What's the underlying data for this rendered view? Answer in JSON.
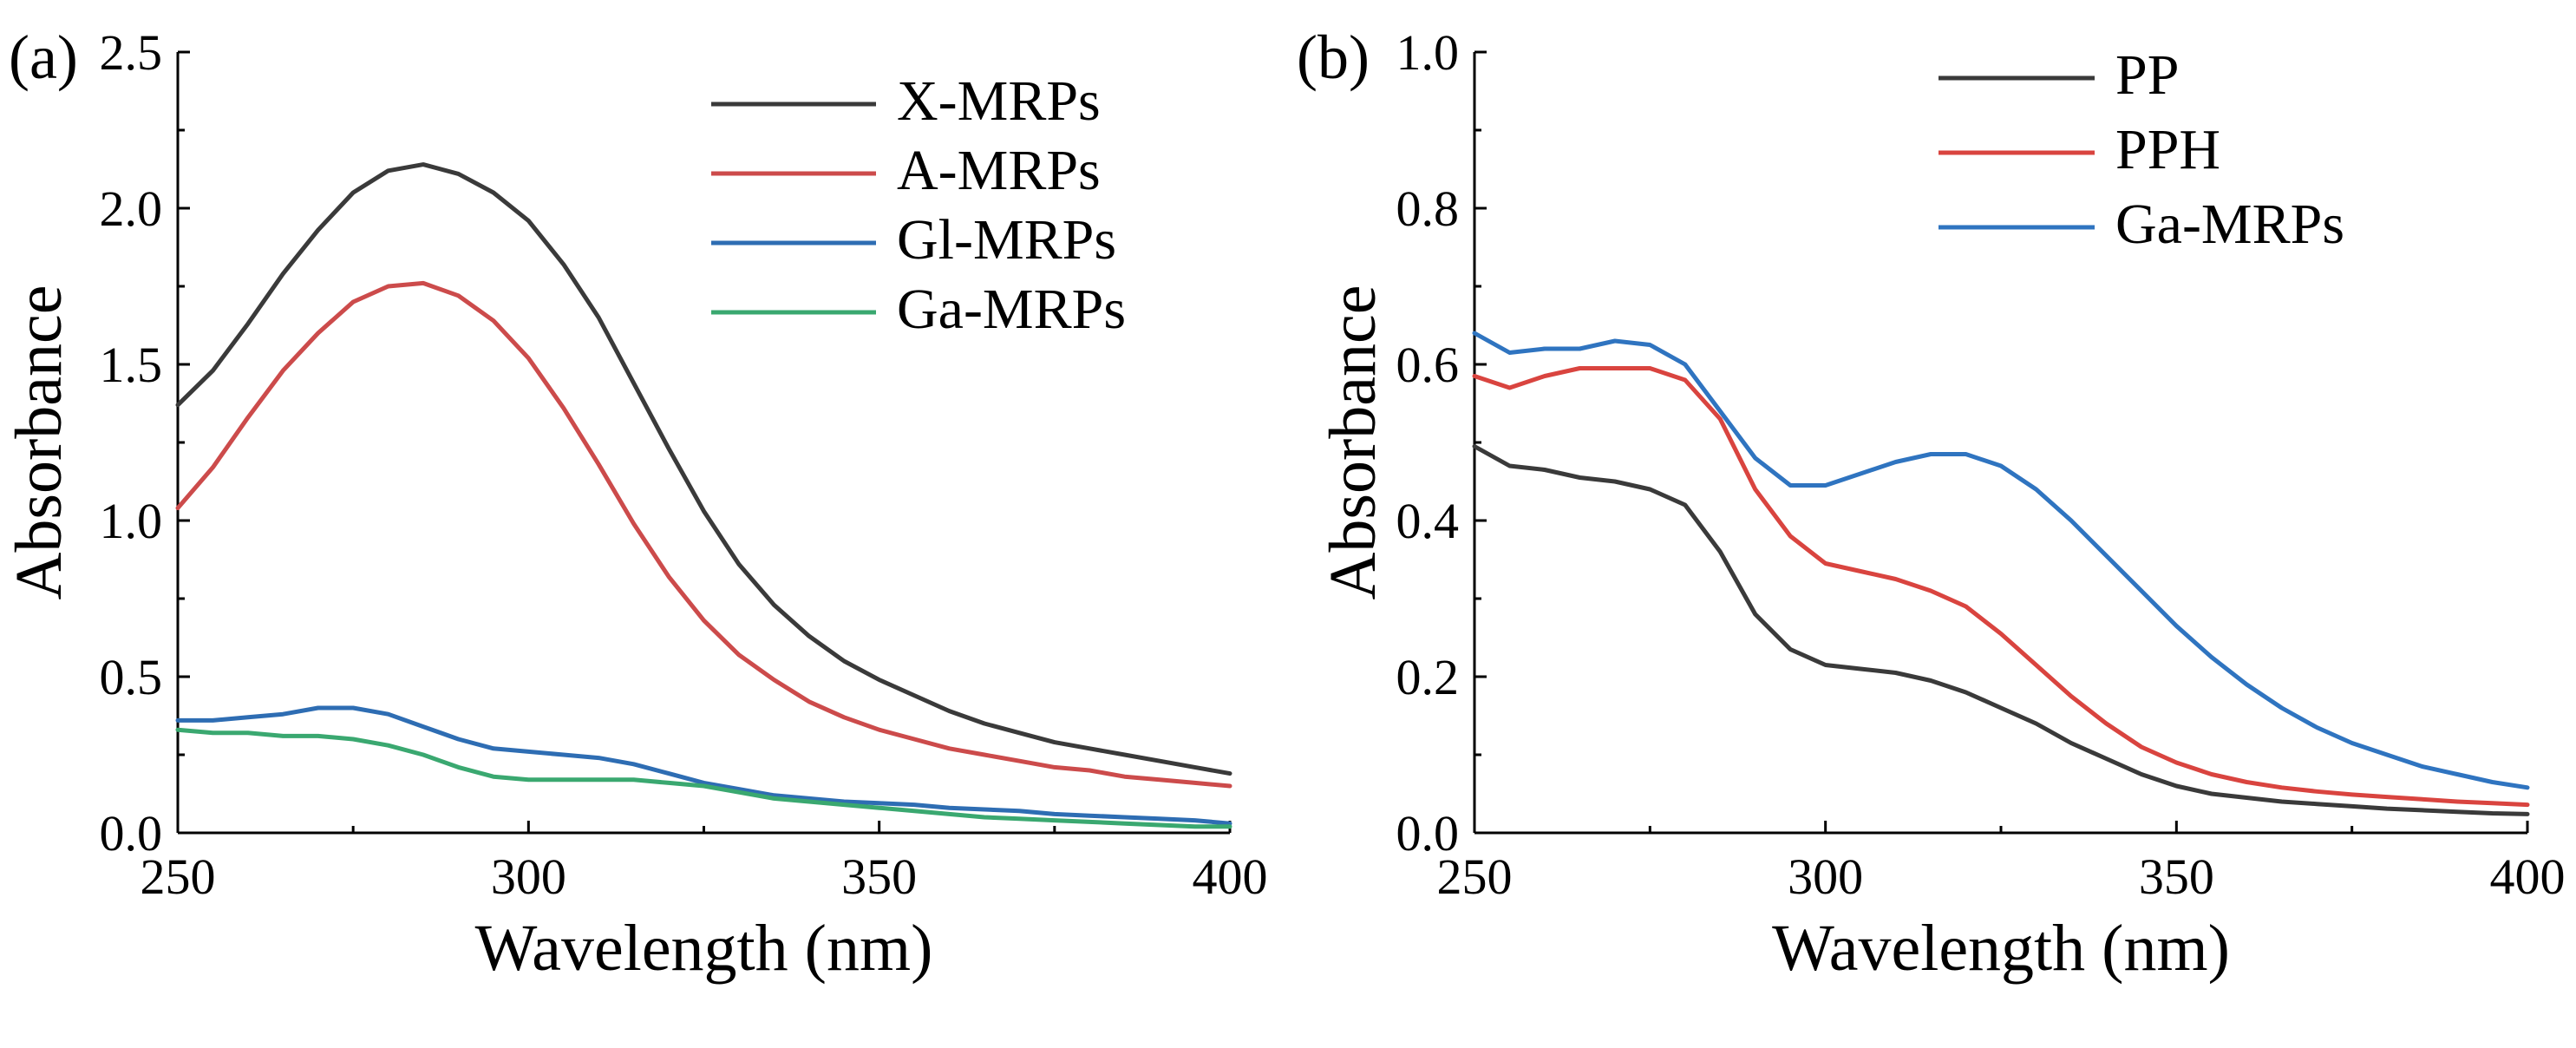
{
  "chart_data": [
    {
      "panel_label": "(a)",
      "type": "line",
      "xlabel": "Wavelength (nm)",
      "ylabel": "Absorbance",
      "xlim": [
        250,
        400
      ],
      "ylim": [
        0,
        2.5
      ],
      "xticks": [
        "250",
        "300",
        "350",
        "400"
      ],
      "yticks": [
        "0.0",
        "0.5",
        "1.0",
        "1.5",
        "2.0",
        "2.5"
      ],
      "legend_position": "top-right",
      "x": [
        250,
        255,
        260,
        265,
        270,
        275,
        280,
        285,
        290,
        295,
        300,
        305,
        310,
        315,
        320,
        325,
        330,
        335,
        340,
        345,
        350,
        355,
        360,
        365,
        370,
        375,
        380,
        385,
        390,
        395,
        400
      ],
      "series": [
        {
          "name": "X-MRPs",
          "color": "#3a3a3a",
          "values": [
            1.37,
            1.48,
            1.63,
            1.79,
            1.93,
            2.05,
            2.12,
            2.14,
            2.11,
            2.05,
            1.96,
            1.82,
            1.65,
            1.44,
            1.23,
            1.03,
            0.86,
            0.73,
            0.63,
            0.55,
            0.49,
            0.44,
            0.39,
            0.35,
            0.32,
            0.29,
            0.27,
            0.25,
            0.23,
            0.21,
            0.19
          ]
        },
        {
          "name": "A-MRPs",
          "color": "#cc4b4b",
          "values": [
            1.04,
            1.17,
            1.33,
            1.48,
            1.6,
            1.7,
            1.75,
            1.76,
            1.72,
            1.64,
            1.52,
            1.36,
            1.18,
            0.99,
            0.82,
            0.68,
            0.57,
            0.49,
            0.42,
            0.37,
            0.33,
            0.3,
            0.27,
            0.25,
            0.23,
            0.21,
            0.2,
            0.18,
            0.17,
            0.16,
            0.15
          ]
        },
        {
          "name": "Gl-MRPs",
          "color": "#2e6db3",
          "values": [
            0.36,
            0.36,
            0.37,
            0.38,
            0.4,
            0.4,
            0.38,
            0.34,
            0.3,
            0.27,
            0.26,
            0.25,
            0.24,
            0.22,
            0.19,
            0.16,
            0.14,
            0.12,
            0.11,
            0.1,
            0.095,
            0.09,
            0.08,
            0.075,
            0.07,
            0.06,
            0.055,
            0.05,
            0.045,
            0.04,
            0.03
          ]
        },
        {
          "name": "Ga-MRPs",
          "color": "#3aa870",
          "values": [
            0.33,
            0.32,
            0.32,
            0.31,
            0.31,
            0.3,
            0.28,
            0.25,
            0.21,
            0.18,
            0.17,
            0.17,
            0.17,
            0.17,
            0.16,
            0.15,
            0.13,
            0.11,
            0.1,
            0.09,
            0.08,
            0.07,
            0.06,
            0.05,
            0.045,
            0.04,
            0.035,
            0.03,
            0.025,
            0.02,
            0.02
          ]
        }
      ]
    },
    {
      "panel_label": "(b)",
      "type": "line",
      "xlabel": "Wavelength (nm)",
      "ylabel": "Absorbance",
      "xlim": [
        250,
        400
      ],
      "ylim": [
        0,
        1.0
      ],
      "xticks": [
        "250",
        "300",
        "350",
        "400"
      ],
      "yticks": [
        "0.0",
        "0.2",
        "0.4",
        "0.6",
        "0.8",
        "1.0"
      ],
      "legend_position": "top-right",
      "x": [
        250,
        255,
        260,
        265,
        270,
        275,
        280,
        285,
        290,
        295,
        300,
        305,
        310,
        315,
        320,
        325,
        330,
        335,
        340,
        345,
        350,
        355,
        360,
        365,
        370,
        375,
        380,
        385,
        390,
        395,
        400
      ],
      "series": [
        {
          "name": "PP",
          "color": "#3a3a3a",
          "values": [
            0.495,
            0.47,
            0.465,
            0.455,
            0.45,
            0.44,
            0.42,
            0.36,
            0.28,
            0.235,
            0.215,
            0.21,
            0.205,
            0.195,
            0.18,
            0.16,
            0.14,
            0.115,
            0.095,
            0.075,
            0.06,
            0.05,
            0.045,
            0.04,
            0.037,
            0.034,
            0.031,
            0.029,
            0.027,
            0.025,
            0.024
          ]
        },
        {
          "name": "PPH",
          "color": "#d9443f",
          "values": [
            0.585,
            0.57,
            0.585,
            0.595,
            0.595,
            0.595,
            0.58,
            0.53,
            0.44,
            0.38,
            0.345,
            0.335,
            0.325,
            0.31,
            0.29,
            0.255,
            0.215,
            0.175,
            0.14,
            0.11,
            0.09,
            0.075,
            0.065,
            0.058,
            0.053,
            0.049,
            0.046,
            0.043,
            0.04,
            0.038,
            0.036
          ]
        },
        {
          "name": "Ga-MRPs",
          "color": "#2f74c0",
          "values": [
            0.64,
            0.615,
            0.62,
            0.62,
            0.63,
            0.625,
            0.6,
            0.54,
            0.48,
            0.445,
            0.445,
            0.46,
            0.475,
            0.485,
            0.485,
            0.47,
            0.44,
            0.4,
            0.355,
            0.31,
            0.265,
            0.225,
            0.19,
            0.16,
            0.135,
            0.115,
            0.1,
            0.085,
            0.075,
            0.065,
            0.058
          ]
        }
      ]
    }
  ]
}
